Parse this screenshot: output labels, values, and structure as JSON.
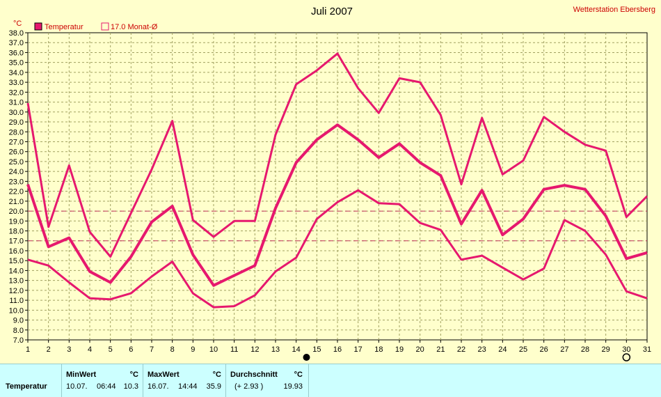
{
  "header": {
    "title": "Juli 2007",
    "station": "Wetterstation Ebersberg",
    "unit": "°C"
  },
  "legend": [
    {
      "label": "Temperatur",
      "filled": true
    },
    {
      "label": "17.0 Monat-Ø",
      "filled": false
    }
  ],
  "chart_data": {
    "type": "line",
    "ylim": [
      7.0,
      38.0
    ],
    "ystep": 1.0,
    "xlim": [
      1,
      31
    ],
    "x": [
      1,
      2,
      3,
      4,
      5,
      6,
      7,
      8,
      9,
      10,
      11,
      12,
      13,
      14,
      15,
      16,
      17,
      18,
      19,
      20,
      21,
      22,
      23,
      24,
      25,
      26,
      27,
      28,
      29,
      30,
      31
    ],
    "series": [
      {
        "name": "Max",
        "width": 3,
        "values": [
          30.9,
          18.4,
          24.6,
          17.9,
          15.4,
          19.8,
          24.2,
          29.1,
          19.1,
          17.4,
          19.0,
          19.0,
          27.7,
          32.8,
          34.2,
          35.9,
          32.4,
          29.9,
          33.4,
          33.0,
          29.7,
          22.7,
          29.4,
          23.7,
          25.1,
          29.5,
          28.0,
          26.7,
          26.1,
          19.4,
          21.5
        ]
      },
      {
        "name": "Mittel",
        "width": 4,
        "values": [
          22.7,
          16.4,
          17.3,
          13.9,
          12.8,
          15.4,
          18.9,
          20.5,
          15.6,
          12.5,
          13.5,
          14.5,
          20.3,
          24.9,
          27.2,
          28.7,
          27.2,
          25.4,
          26.8,
          24.9,
          23.6,
          18.7,
          22.1,
          17.6,
          19.2,
          22.2,
          22.6,
          22.2,
          19.5,
          15.2,
          15.8
        ]
      },
      {
        "name": "Min",
        "width": 3,
        "values": [
          15.1,
          14.5,
          12.8,
          11.2,
          11.1,
          11.7,
          13.4,
          14.9,
          11.7,
          10.3,
          10.4,
          11.5,
          13.9,
          15.3,
          19.2,
          20.9,
          22.1,
          20.8,
          20.7,
          18.8,
          18.1,
          15.1,
          15.5,
          14.3,
          13.1,
          14.2,
          19.1,
          18.0,
          15.6,
          11.9,
          11.2
        ]
      }
    ],
    "reference_lines": [
      17.0,
      20.0
    ],
    "moon_phases": [
      {
        "day": 14.5,
        "phase": "new"
      },
      {
        "day": 30,
        "phase": "full"
      }
    ],
    "grid": true,
    "color": "#e6186e"
  },
  "stats": {
    "row_label": "Temperatur",
    "min": {
      "head": "MinWert",
      "unit": "°C",
      "date": "10.07.",
      "time": "06:44",
      "value": "10.3"
    },
    "max": {
      "head": "MaxWert",
      "unit": "°C",
      "date": "16.07.",
      "time": "14:44",
      "value": "35.9"
    },
    "avg": {
      "head": "Durchschnitt",
      "unit": "°C",
      "delta": "(+ 2.93 )",
      "value": "19.93"
    }
  }
}
